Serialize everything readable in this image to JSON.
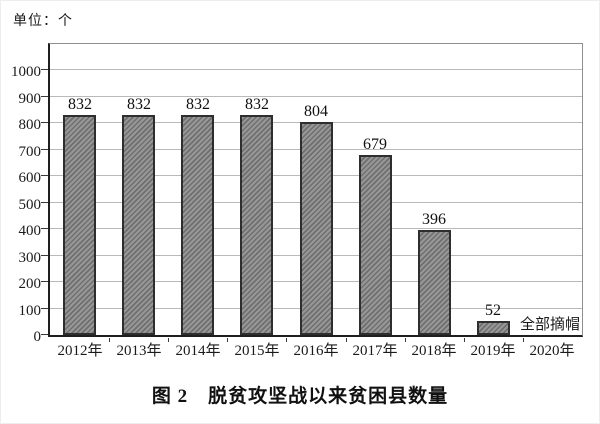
{
  "chart": {
    "unit_label": "单位：个",
    "caption": "图 2　脱贫攻坚战以来贫困县数量"
  },
  "chart_data": {
    "type": "bar",
    "title": "图 2 脱贫攻坚战以来贫困县数量",
    "unit_label": "单位：个",
    "categories": [
      "2012年",
      "2013年",
      "2014年",
      "2015年",
      "2016年",
      "2017年",
      "2018年",
      "2019年",
      "2020年"
    ],
    "values": [
      832,
      832,
      832,
      832,
      804,
      679,
      396,
      52,
      0
    ],
    "bar_value_labels": [
      "832",
      "832",
      "832",
      "832",
      "804",
      "679",
      "396",
      "52",
      ""
    ],
    "annotations": [
      {
        "category": "2020年",
        "text": "全部摘帽"
      }
    ],
    "xlabel": "",
    "ylabel": "",
    "yticks": [
      0,
      100,
      200,
      300,
      400,
      500,
      600,
      700,
      800,
      900,
      1000
    ],
    "ylim": [
      0,
      1100
    ],
    "grid": true,
    "legend": "none",
    "colors": {
      "bar_fill": "#8a8a8a",
      "bar_hatch_dark": "#6f6f6f",
      "bar_border": "#2e2e2e",
      "gridline": "#b9b9b9",
      "axis": "#1f1f1f",
      "frame": "#8f8f8f",
      "text": "#111111"
    },
    "bar_hatch": "diagonal-forward"
  }
}
